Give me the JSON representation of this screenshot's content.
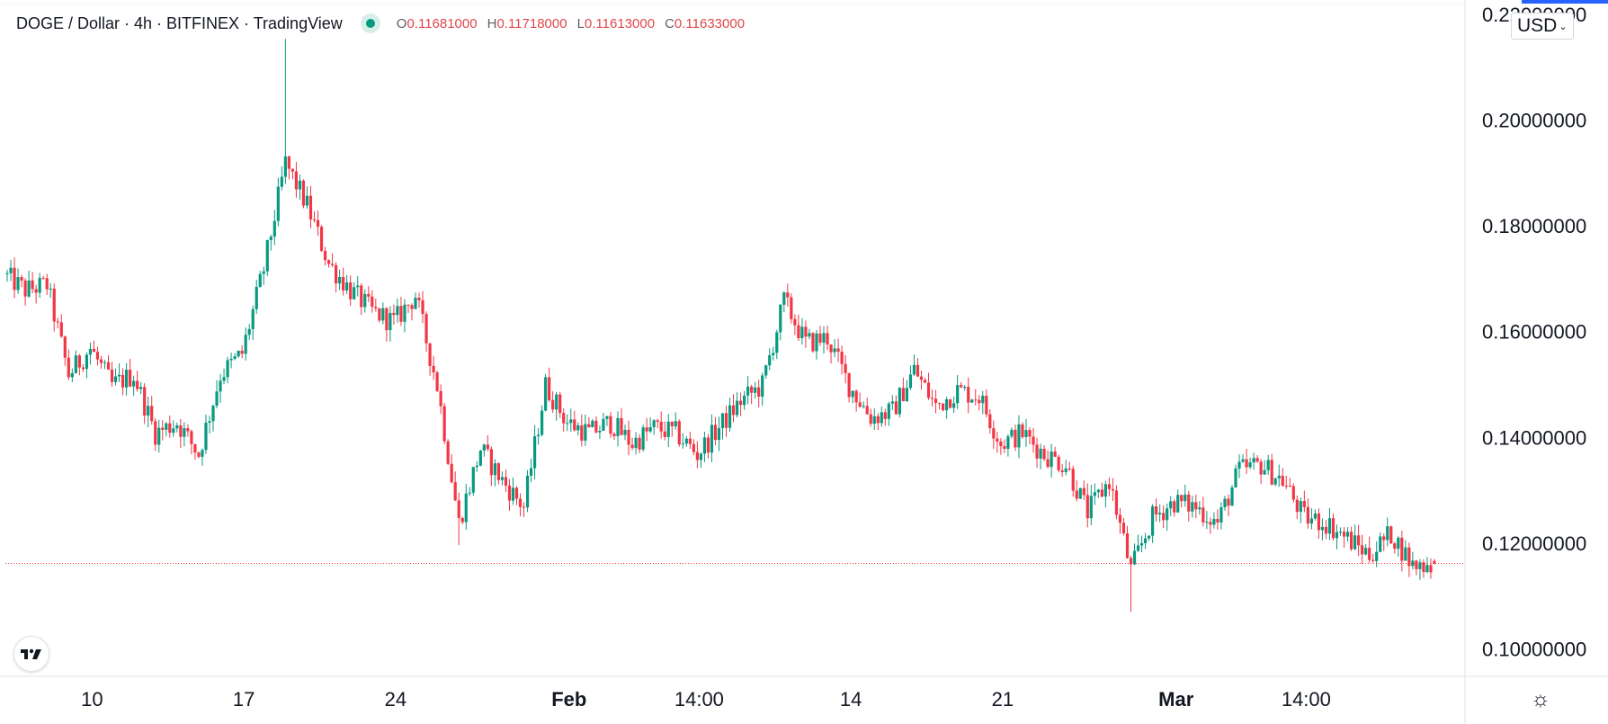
{
  "header": {
    "symbol": "DOGE / Dollar · 4h · BITFINEX · TradingView",
    "ohlc": {
      "o_label": "O",
      "o_value": "0.11681000",
      "h_label": "H",
      "h_value": "0.11718000",
      "l_label": "L",
      "l_value": "0.11613000",
      "c_label": "C",
      "c_value": "0.11633000"
    },
    "currency": "USD"
  },
  "icons": {
    "logo": "tradingview-logo-icon",
    "settings": "gear-icon",
    "status": "market-status-dot-icon",
    "currency_chevron": "chevron-down-icon"
  },
  "colors": {
    "up": "#089981",
    "down": "#f23645",
    "last_price_line": "#f23645",
    "accent": "#2962ff"
  },
  "chart_data": {
    "type": "candlestick",
    "title": "",
    "interval": "4h",
    "ylim": [
      0.095,
      0.222
    ],
    "y_ticks": [
      "0.22000000",
      "0.20000000",
      "0.18000000",
      "0.16000000",
      "0.14000000",
      "0.12000000",
      "0.10000000"
    ],
    "y_tick_values": [
      0.22,
      0.2,
      0.18,
      0.16,
      0.14,
      0.12,
      0.1
    ],
    "x_ticks": [
      {
        "label": "10",
        "bold": false,
        "date": "2022-01-10"
      },
      {
        "label": "17",
        "bold": false,
        "date": "2022-01-17"
      },
      {
        "label": "24",
        "bold": false,
        "date": "2022-01-24"
      },
      {
        "label": "Feb",
        "bold": true,
        "date": "2022-02-01"
      },
      {
        "label": "14:00",
        "bold": false,
        "date": "2022-02-07"
      },
      {
        "label": "14",
        "bold": false,
        "date": "2022-02-14"
      },
      {
        "label": "21",
        "bold": false,
        "date": "2022-02-21"
      },
      {
        "label": "Mar",
        "bold": true,
        "date": "2022-03-01"
      },
      {
        "label": "14:00",
        "bold": false,
        "date": "2022-03-07"
      }
    ],
    "last_price": 0.11633,
    "ohlc_path": [
      [
        "2022-01-06",
        0.171
      ],
      [
        "2022-01-07",
        0.168
      ],
      [
        "2022-01-08",
        0.169
      ],
      [
        "2022-01-09",
        0.152
      ],
      [
        "2022-01-10",
        0.157
      ],
      [
        "2022-01-11",
        0.15
      ],
      [
        "2022-01-12",
        0.152
      ],
      [
        "2022-01-13",
        0.141
      ],
      [
        "2022-01-14",
        0.143
      ],
      [
        "2022-01-15",
        0.137
      ],
      [
        "2022-01-16",
        0.152
      ],
      [
        "2022-01-17",
        0.156
      ],
      [
        "2022-01-18",
        0.172
      ],
      [
        "2022-01-19",
        0.192
      ],
      [
        "2022-01-20",
        0.184
      ],
      [
        "2022-01-21",
        0.173
      ],
      [
        "2022-01-22",
        0.168
      ],
      [
        "2022-01-23",
        0.164
      ],
      [
        "2022-01-24",
        0.162
      ],
      [
        "2022-01-25",
        0.167
      ],
      [
        "2022-01-26",
        0.15
      ],
      [
        "2022-01-27",
        0.124
      ],
      [
        "2022-01-28",
        0.138
      ],
      [
        "2022-01-29",
        0.132
      ],
      [
        "2022-01-30",
        0.127
      ],
      [
        "2022-01-31",
        0.15
      ],
      [
        "2022-02-01",
        0.143
      ],
      [
        "2022-02-02",
        0.141
      ],
      [
        "2022-02-03",
        0.143
      ],
      [
        "2022-02-04",
        0.139
      ],
      [
        "2022-02-05",
        0.142
      ],
      [
        "2022-02-06",
        0.141
      ],
      [
        "2022-02-07",
        0.137
      ],
      [
        "2022-02-08",
        0.142
      ],
      [
        "2022-02-09",
        0.147
      ],
      [
        "2022-02-10",
        0.15
      ],
      [
        "2022-02-11",
        0.166
      ],
      [
        "2022-02-12",
        0.158
      ],
      [
        "2022-02-13",
        0.159
      ],
      [
        "2022-02-14",
        0.15
      ],
      [
        "2022-02-15",
        0.144
      ],
      [
        "2022-02-16",
        0.145
      ],
      [
        "2022-02-17",
        0.153
      ],
      [
        "2022-02-18",
        0.146
      ],
      [
        "2022-02-19",
        0.149
      ],
      [
        "2022-02-20",
        0.148
      ],
      [
        "2022-02-21",
        0.139
      ],
      [
        "2022-02-22",
        0.141
      ],
      [
        "2022-02-23",
        0.137
      ],
      [
        "2022-02-24",
        0.135
      ],
      [
        "2022-02-25",
        0.126
      ],
      [
        "2022-02-26",
        0.132
      ],
      [
        "2022-02-27",
        0.115
      ],
      [
        "2022-02-28",
        0.125
      ],
      [
        "2022-03-01",
        0.128
      ],
      [
        "2022-03-02",
        0.127
      ],
      [
        "2022-03-03",
        0.124
      ],
      [
        "2022-03-04",
        0.134
      ],
      [
        "2022-03-05",
        0.135
      ],
      [
        "2022-03-06",
        0.132
      ],
      [
        "2022-03-07",
        0.125
      ],
      [
        "2022-03-08",
        0.124
      ],
      [
        "2022-03-09",
        0.121
      ],
      [
        "2022-03-10",
        0.118
      ],
      [
        "2022-03-11",
        0.122
      ],
      [
        "2022-03-12",
        0.116
      ],
      [
        "2022-03-13",
        0.1163
      ]
    ],
    "candles_per_day": 6,
    "extremes": [
      {
        "date": "2022-01-19",
        "high": 0.2155
      },
      {
        "date": "2022-01-27",
        "low": 0.1198
      },
      {
        "date": "2022-02-27",
        "low": 0.1072
      }
    ]
  }
}
